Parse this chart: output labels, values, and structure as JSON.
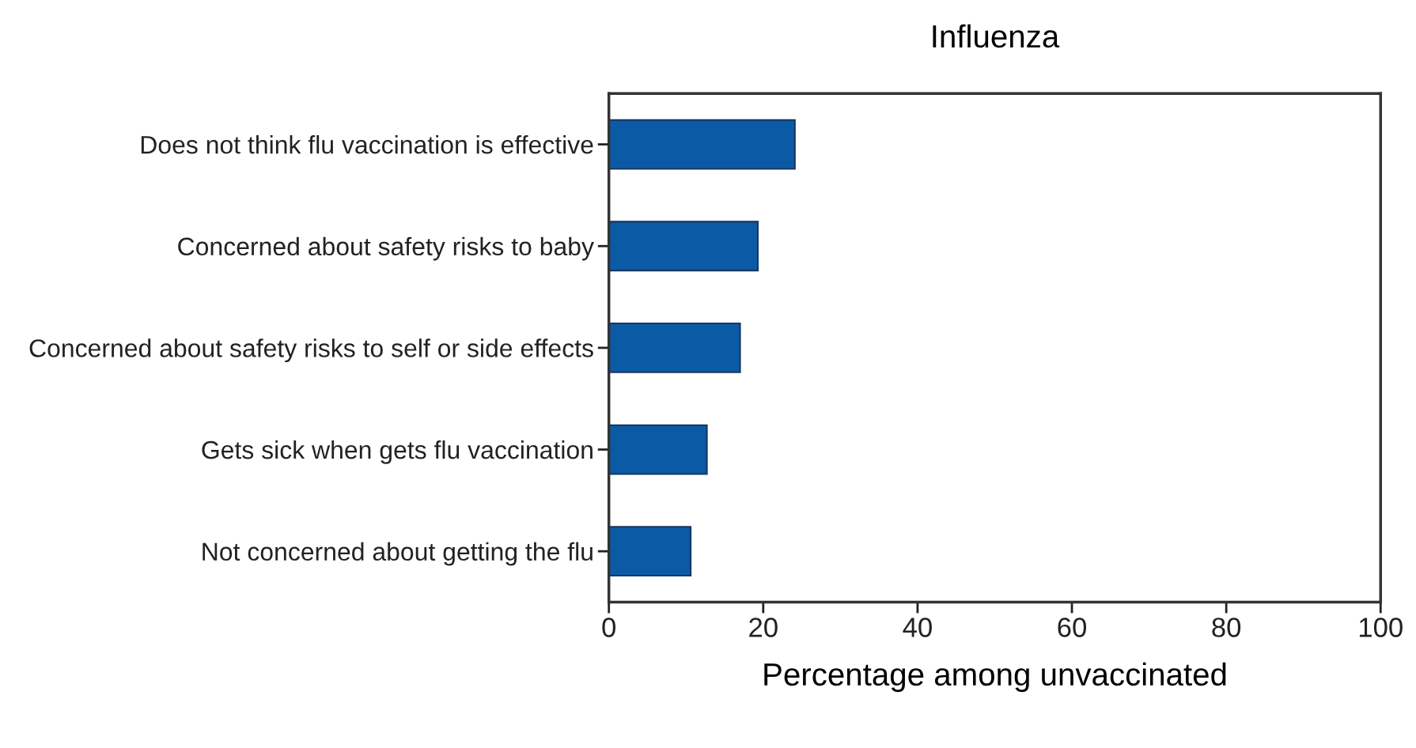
{
  "chart_data": {
    "type": "bar",
    "orientation": "horizontal",
    "title": "Influenza",
    "xlabel": "Percentage among unvaccinated",
    "categories": [
      "Does not think flu vaccination is effective",
      "Concerned about safety risks to baby",
      "Concerned about safety risks to self or side effects",
      "Gets sick when gets flu vaccination",
      "Not concerned about getting the flu"
    ],
    "values": [
      24.1,
      19.3,
      17.0,
      12.7,
      10.6
    ],
    "color": "#0b5aa6",
    "xlim": [
      0,
      100
    ],
    "xticks": [
      0,
      20,
      40,
      60,
      80,
      100
    ],
    "grid": false,
    "legend": false
  }
}
